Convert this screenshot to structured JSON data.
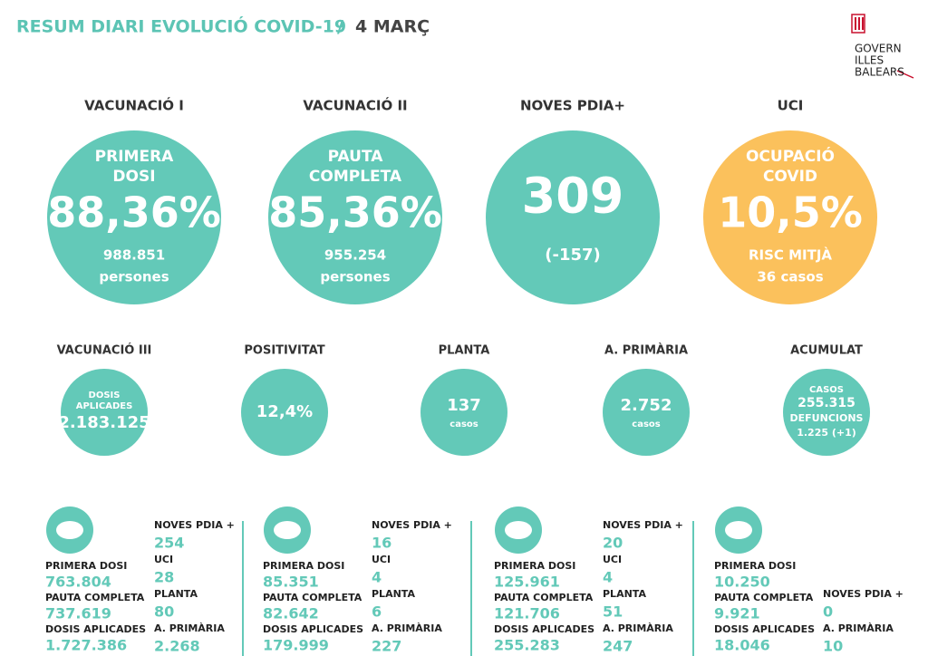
{
  "header": {
    "title": "RESUM DIARI EVOLUCIÓ COVID-19",
    "separator": "/",
    "date": "4 MARÇ"
  },
  "logo": {
    "lines": [
      "GOVERN",
      "ILLES",
      "BALEARS"
    ]
  },
  "main_indicators": [
    {
      "heading": "VACUNACIÓ I",
      "labels": [
        "PRIMERA",
        "DOSI"
      ],
      "value": "88,36%",
      "notes": [
        "988.851",
        "persones"
      ],
      "color": "#63c9b8"
    },
    {
      "heading": "VACUNACIÓ II",
      "labels": [
        "PAUTA",
        "COMPLETA"
      ],
      "value": "85,36%",
      "notes": [
        "955.254",
        "persones"
      ],
      "color": "#63c9b8"
    },
    {
      "heading": "NOVES PDIA+",
      "labels": [],
      "value": "309",
      "notes": [
        "(-157)"
      ],
      "color": "#63c9b8"
    },
    {
      "heading": "UCI",
      "labels": [
        "OCUPACIÓ",
        "COVID"
      ],
      "value": "10,5%",
      "notes": [
        "RISC  MITJÀ",
        "36 casos"
      ],
      "color": "#fbc15c"
    }
  ],
  "secondary_indicators": [
    {
      "heading": "VACUNACIÓ III",
      "labels": [
        "DOSIS",
        "APLICADES"
      ],
      "value": "2.183.125",
      "notes": []
    },
    {
      "heading": "POSITIVITAT",
      "labels": [],
      "value": "12,4%",
      "notes": []
    },
    {
      "heading": "PLANTA",
      "labels": [],
      "value": "137",
      "notes": [
        "casos"
      ]
    },
    {
      "heading": "A. PRIMÀRIA",
      "labels": [],
      "value": "2.752",
      "notes": [
        "casos"
      ]
    },
    {
      "heading": "ACUMULAT",
      "labels": [
        "CASOS"
      ],
      "value": "255.315",
      "notes": [
        "DEFUNCIONS",
        "1.225 (+1)"
      ]
    }
  ],
  "islands": [
    {
      "left": [
        {
          "label": "PRIMERA DOSI",
          "value": "763.804"
        },
        {
          "label": "PAUTA COMPLETA",
          "value": "737.619"
        },
        {
          "label": "DOSIS APLICADES",
          "value": "1.727.386"
        }
      ],
      "right": [
        {
          "label": "NOVES PDIA +",
          "value": "254"
        },
        {
          "label": "UCI",
          "value": "28"
        },
        {
          "label": "PLANTA",
          "value": "80"
        },
        {
          "label": "A. PRIMÀRIA",
          "value": "2.268"
        }
      ]
    },
    {
      "left": [
        {
          "label": "PRIMERA DOSI",
          "value": "85.351"
        },
        {
          "label": "PAUTA COMPLETA",
          "value": "82.642"
        },
        {
          "label": "DOSIS APLICADES",
          "value": "179.999"
        }
      ],
      "right": [
        {
          "label": "NOVES PDIA +",
          "value": "16"
        },
        {
          "label": "UCI",
          "value": "4"
        },
        {
          "label": "PLANTA",
          "value": "6"
        },
        {
          "label": "A. PRIMÀRIA",
          "value": "227"
        }
      ]
    },
    {
      "left": [
        {
          "label": "PRIMERA DOSI",
          "value": "125.961"
        },
        {
          "label": "PAUTA COMPLETA",
          "value": "121.706"
        },
        {
          "label": "DOSIS APLICADES",
          "value": "255.283"
        }
      ],
      "right": [
        {
          "label": "NOVES PDIA +",
          "value": "20"
        },
        {
          "label": "UCI",
          "value": "4"
        },
        {
          "label": "PLANTA",
          "value": "51"
        },
        {
          "label": "A. PRIMÀRIA",
          "value": "247"
        }
      ]
    },
    {
      "left": [
        {
          "label": "PRIMERA DOSI",
          "value": "10.250"
        },
        {
          "label": "PAUTA COMPLETA",
          "value": "9.921"
        },
        {
          "label": "DOSIS APLICADES",
          "value": "18.046"
        }
      ],
      "right": [
        {
          "label": "NOVES PDIA +",
          "value": "0"
        },
        {
          "label": "A. PRIMÀRIA",
          "value": "10"
        }
      ]
    }
  ]
}
